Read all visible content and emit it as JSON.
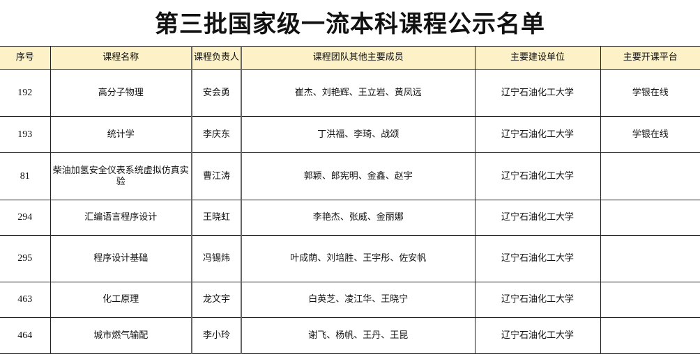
{
  "title": "第三批国家级一流本科课程公示名单",
  "headers": [
    "序号",
    "课程名称",
    "课程负责人",
    "课程团队其他主要成员",
    "主要建设单位",
    "主要开课平台"
  ],
  "rows": [
    {
      "no": "192",
      "course": "高分子物理",
      "leader": "安会勇",
      "team": "崔杰、刘艳辉、王立岩、黄凤远",
      "unit": "辽宁石油化工大学",
      "platform": "学银在线"
    },
    {
      "no": "193",
      "course": "统计学",
      "leader": "李庆东",
      "team": "丁洪福、李琦、战颂",
      "unit": "辽宁石油化工大学",
      "platform": "学银在线"
    },
    {
      "no": "81",
      "course": "柴油加氢安全仪表系统虚拟仿真实验",
      "leader": "曹江涛",
      "team": "郭颖、郎宪明、金鑫、赵宇",
      "unit": "辽宁石油化工大学",
      "platform": ""
    },
    {
      "no": "294",
      "course": "汇编语言程序设计",
      "leader": "王晓虹",
      "team": "李艳杰、张威、金丽娜",
      "unit": "辽宁石油化工大学",
      "platform": ""
    },
    {
      "no": "295",
      "course": "程序设计基础",
      "leader": "冯锡炜",
      "team": "叶成荫、刘培胜、王宇彤、佐安帆",
      "unit": "辽宁石油化工大学",
      "platform": ""
    },
    {
      "no": "463",
      "course": "化工原理",
      "leader": "龙文宇",
      "team": "白英芝、凌江华、王晓宁",
      "unit": "辽宁石油化工大学",
      "platform": ""
    },
    {
      "no": "464",
      "course": "城市燃气输配",
      "leader": "李小玲",
      "team": "谢飞、杨帆、王丹、王昆",
      "unit": "辽宁石油化工大学",
      "platform": ""
    }
  ],
  "colors": {
    "header_bg": "#fdf1c8",
    "border": "#222222"
  }
}
